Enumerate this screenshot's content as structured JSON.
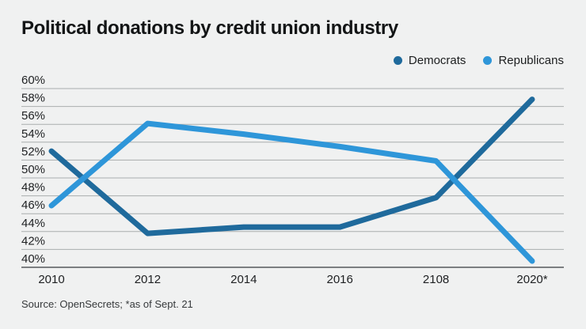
{
  "title": "Political donations by credit union industry",
  "source_note": "Source: OpenSecrets; *as of Sept. 21",
  "colors": {
    "background": "#f0f1f1",
    "democrats": "#1f6a9c",
    "republicans": "#2e96d9",
    "gridline": "#a9adae",
    "axis_line": "#55595c",
    "text": "#1e2022"
  },
  "legend": {
    "items": [
      {
        "label": "Democrats",
        "color": "#1f6a9c"
      },
      {
        "label": "Republicans",
        "color": "#2e96d9"
      }
    ]
  },
  "chart_data": {
    "type": "line",
    "categories": [
      "2010",
      "2012",
      "2014",
      "2016",
      "2108",
      "2020*"
    ],
    "series": [
      {
        "name": "Democrats",
        "color": "#1f6a9c",
        "values": [
          53.0,
          43.8,
          44.5,
          44.5,
          47.8,
          58.8
        ]
      },
      {
        "name": "Republicans",
        "color": "#2e96d9",
        "values": [
          46.9,
          56.1,
          54.9,
          53.5,
          51.9,
          40.7
        ]
      }
    ],
    "title": "Political donations by credit union industry",
    "xlabel": "",
    "ylabel": "",
    "ylim": [
      40,
      60
    ],
    "ytick_step": 2,
    "yticks": [
      "60%",
      "58%",
      "56%",
      "54%",
      "52%",
      "50%",
      "48%",
      "46%",
      "44%",
      "42%",
      "40%"
    ],
    "grid": true,
    "legend_position": "top-right",
    "footnote": "Source: OpenSecrets; *as of Sept. 21"
  }
}
